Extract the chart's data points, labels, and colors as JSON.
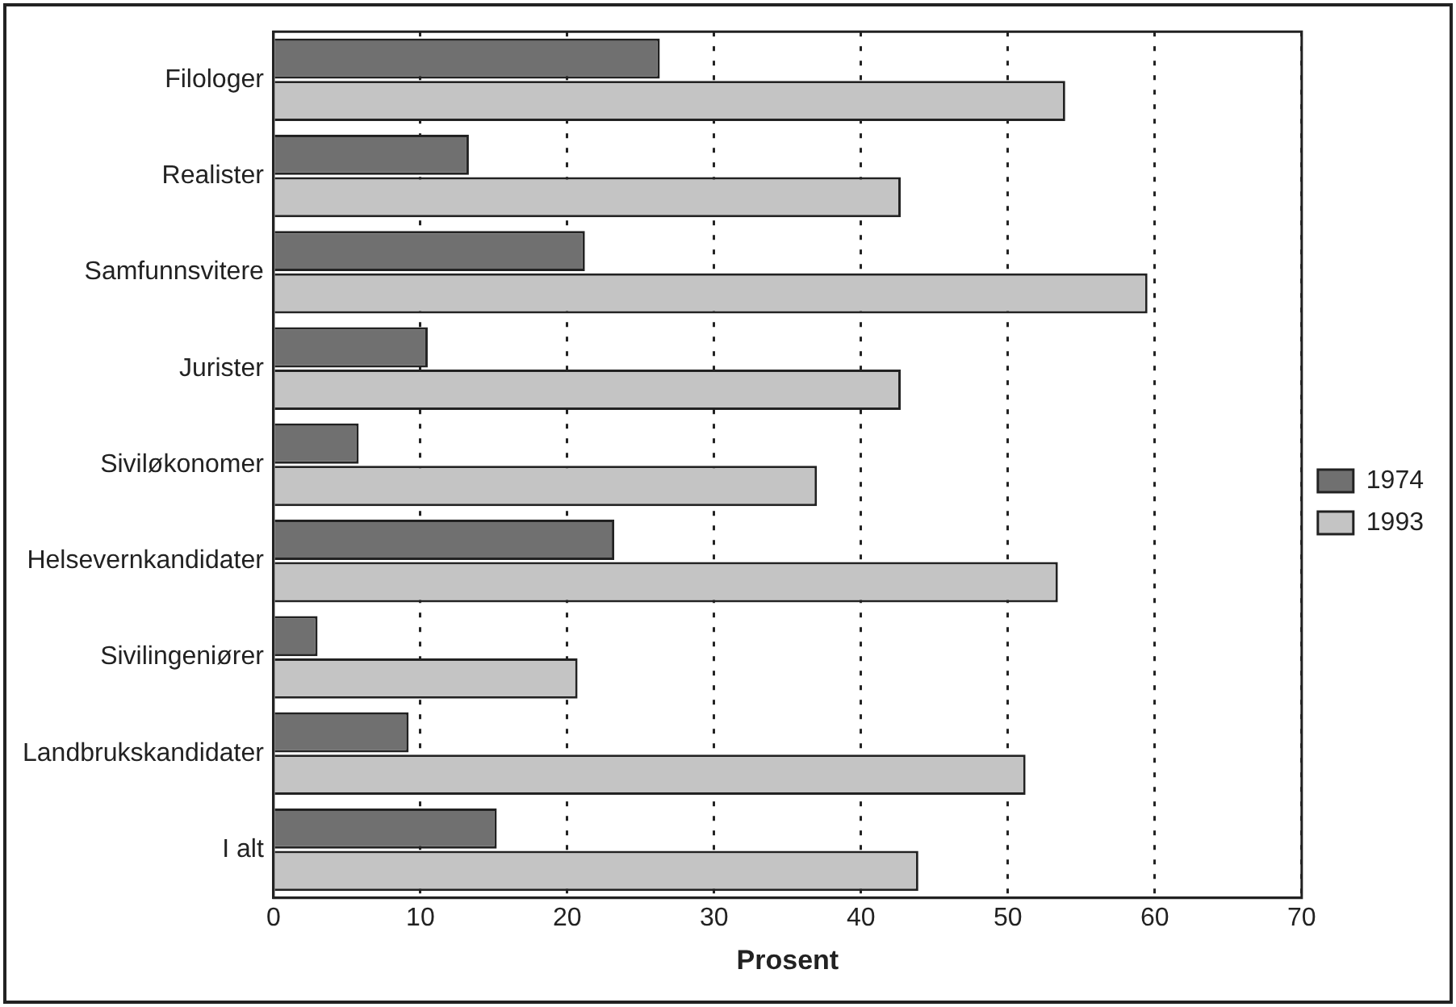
{
  "chart_data": {
    "type": "bar",
    "orientation": "horizontal",
    "xlabel": "Prosent",
    "categories": [
      "Filologer",
      "Realister",
      "Samfunnsvitere",
      "Jurister",
      "Siviløkonomer",
      "Helsevernkandidater",
      "Sivilingeniører",
      "Landbrukskandidater",
      "I alt"
    ],
    "series": [
      {
        "name": "1974",
        "color": "#707070",
        "values": [
          26.3,
          13.3,
          21.2,
          10.5,
          5.8,
          23.2,
          3.0,
          9.2,
          15.2
        ]
      },
      {
        "name": "1993",
        "color": "#c4c4c4",
        "values": [
          53.9,
          42.7,
          59.5,
          42.7,
          37.0,
          53.4,
          20.7,
          51.2,
          43.9
        ]
      }
    ],
    "xlim": [
      0,
      70
    ],
    "xticks": [
      0,
      10,
      20,
      30,
      40,
      50,
      60,
      70
    ],
    "grid": "x",
    "legend": "right"
  }
}
